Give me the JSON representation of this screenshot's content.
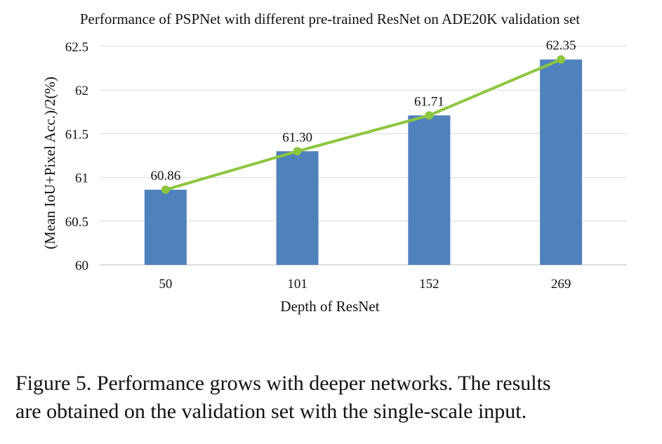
{
  "chart_data": {
    "type": "bar",
    "title": "Performance of PSPNet with different pre-trained ResNet on ADE20K validation set",
    "xlabel": "Depth of ResNet",
    "ylabel": "(Mean IoU+Pixel Acc.)/2(%)",
    "categories": [
      "50",
      "101",
      "152",
      "269"
    ],
    "values": [
      60.86,
      61.3,
      61.71,
      62.35
    ],
    "data_labels": [
      "60.86",
      "61.30",
      "61.71",
      "62.35"
    ],
    "ylim": [
      60,
      62.5
    ],
    "yticks": [
      60,
      60.5,
      61,
      61.5,
      62,
      62.5
    ],
    "ytick_labels": [
      "60",
      "60.5",
      "61",
      "61.5",
      "62",
      "62.5"
    ],
    "grid": true,
    "overlay_line": true,
    "colors": {
      "bar": "#4f81bd",
      "line": "#8dc63f",
      "grid": "#d9d9d9"
    }
  },
  "caption": {
    "line1": "Figure 5. Performance grows with deeper networks.  The results",
    "line2": "are obtained on the validation set with the single-scale input."
  }
}
